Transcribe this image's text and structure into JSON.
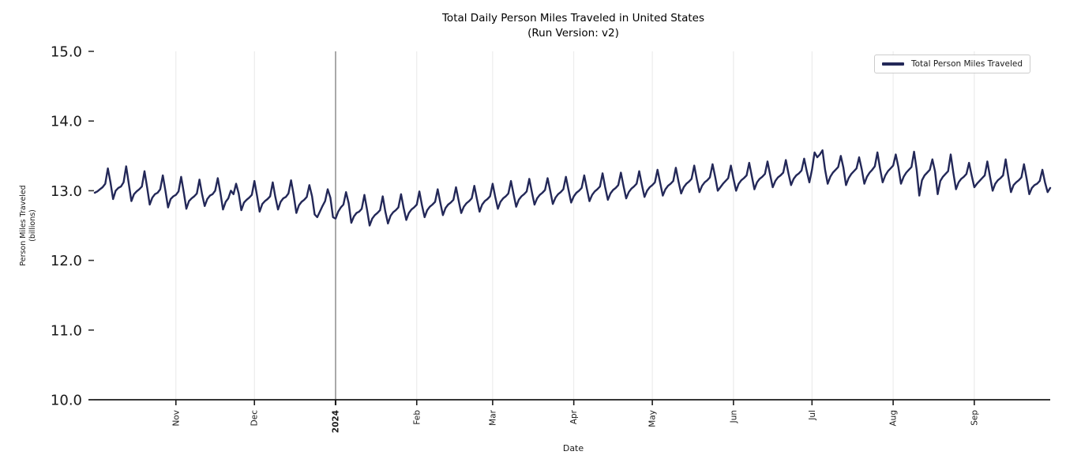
{
  "page": {
    "background": "#ffffff"
  },
  "colors": {
    "line": "#232858",
    "month_gridline": "#e8e8e8",
    "year_divider": "#555555",
    "axis": "#1a1a1a",
    "tick_label": "#1a1a1a",
    "legend_border": "#cccccc"
  },
  "chart_data": {
    "type": "line",
    "title": "Total Daily Person Miles Traveled in United States",
    "subtitle": "(Run Version: v2)",
    "xlabel": "Date",
    "ylabel": "Person Miles Traveled",
    "ylabel_units": "(billions)",
    "grid": "vertical month gridlines only, horizontal grid off",
    "legend": {
      "position": "upper right",
      "entries": [
        {
          "label": "Total Person Miles Traveled",
          "color": "#232858"
        }
      ]
    },
    "ylim": [
      10.0,
      15.0
    ],
    "y_ticks": [
      {
        "value": 10.0,
        "label": "10.0"
      },
      {
        "value": 11.0,
        "label": "11.0"
      },
      {
        "value": 12.0,
        "label": "12.0"
      },
      {
        "value": 13.0,
        "label": "13.0"
      },
      {
        "value": 14.0,
        "label": "14.0"
      },
      {
        "value": 15.0,
        "label": "15.0"
      }
    ],
    "x_ticks": [
      {
        "label": "Nov",
        "day": 31,
        "bold": false
      },
      {
        "label": "Dec",
        "day": 61,
        "bold": false
      },
      {
        "label": "2024",
        "day": 92,
        "bold": true
      },
      {
        "label": "Feb",
        "day": 123,
        "bold": false
      },
      {
        "label": "Mar",
        "day": 152,
        "bold": false
      },
      {
        "label": "Apr",
        "day": 183,
        "bold": false
      },
      {
        "label": "May",
        "day": 213,
        "bold": false
      },
      {
        "label": "Jun",
        "day": 244,
        "bold": false
      },
      {
        "label": "Jul",
        "day": 274,
        "bold": false
      },
      {
        "label": "Aug",
        "day": 305,
        "bold": false
      },
      {
        "label": "Sep",
        "day": 336,
        "bold": false
      }
    ],
    "year_divider": {
      "day": 92,
      "color": "#555555"
    },
    "series": [
      {
        "name": "Total Person Miles Traveled",
        "color": "#232858",
        "n_points": 366,
        "range_note": "daily values Oct 2023 through Sep 2024, weekly oscillation, min ~12.5 mid-Jan, max ~13.6 early Jul",
        "values": [
          12.97,
          12.99,
          13.02,
          13.05,
          13.1,
          13.32,
          13.12,
          12.88,
          13.0,
          13.04,
          13.06,
          13.12,
          13.35,
          13.1,
          12.85,
          12.95,
          12.99,
          13.02,
          13.06,
          13.28,
          13.05,
          12.8,
          12.9,
          12.95,
          12.97,
          13.02,
          13.22,
          13.0,
          12.76,
          12.88,
          12.92,
          12.94,
          12.99,
          13.2,
          12.98,
          12.74,
          12.85,
          12.89,
          12.92,
          12.96,
          13.16,
          12.95,
          12.78,
          12.88,
          12.93,
          12.95,
          13.0,
          13.18,
          12.97,
          12.73,
          12.84,
          12.89,
          13.0,
          12.95,
          13.1,
          12.96,
          12.72,
          12.83,
          12.87,
          12.9,
          12.94,
          13.14,
          12.93,
          12.7,
          12.81,
          12.85,
          12.88,
          12.92,
          13.12,
          12.91,
          12.73,
          12.84,
          12.89,
          12.91,
          12.96,
          13.15,
          12.94,
          12.68,
          12.79,
          12.84,
          12.87,
          12.91,
          13.08,
          12.92,
          12.66,
          12.62,
          12.7,
          12.78,
          12.85,
          13.02,
          12.9,
          12.62,
          12.6,
          12.7,
          12.76,
          12.8,
          12.98,
          12.82,
          12.54,
          12.63,
          12.68,
          12.7,
          12.74,
          12.94,
          12.73,
          12.5,
          12.6,
          12.65,
          12.68,
          12.72,
          12.92,
          12.7,
          12.53,
          12.64,
          12.69,
          12.72,
          12.76,
          12.95,
          12.75,
          12.58,
          12.68,
          12.73,
          12.76,
          12.8,
          12.99,
          12.79,
          12.62,
          12.72,
          12.77,
          12.8,
          12.84,
          13.02,
          12.83,
          12.65,
          12.75,
          12.8,
          12.83,
          12.87,
          13.05,
          12.86,
          12.68,
          12.77,
          12.82,
          12.85,
          12.89,
          13.07,
          12.88,
          12.7,
          12.8,
          12.85,
          12.88,
          12.92,
          13.1,
          12.91,
          12.74,
          12.84,
          12.89,
          12.92,
          12.96,
          13.14,
          12.95,
          12.77,
          12.87,
          12.92,
          12.95,
          12.99,
          13.17,
          12.98,
          12.8,
          12.89,
          12.94,
          12.97,
          13.01,
          13.18,
          13.0,
          12.81,
          12.9,
          12.95,
          12.98,
          13.02,
          13.2,
          13.01,
          12.83,
          12.92,
          12.97,
          13.0,
          13.04,
          13.22,
          13.03,
          12.85,
          12.94,
          12.99,
          13.02,
          13.06,
          13.25,
          13.05,
          12.87,
          12.96,
          13.01,
          13.04,
          13.08,
          13.26,
          13.07,
          12.89,
          12.98,
          13.03,
          13.06,
          13.1,
          13.28,
          13.09,
          12.91,
          13.0,
          13.05,
          13.08,
          13.12,
          13.3,
          13.11,
          12.93,
          13.02,
          13.07,
          13.1,
          13.14,
          13.33,
          13.13,
          12.96,
          13.05,
          13.1,
          13.13,
          13.17,
          13.36,
          13.16,
          12.98,
          13.07,
          13.12,
          13.15,
          13.19,
          13.38,
          13.2,
          13.0,
          13.05,
          13.1,
          13.14,
          13.18,
          13.36,
          13.17,
          13.0,
          13.1,
          13.15,
          13.18,
          13.22,
          13.4,
          13.21,
          13.02,
          13.12,
          13.17,
          13.2,
          13.24,
          13.42,
          13.23,
          13.05,
          13.14,
          13.19,
          13.22,
          13.26,
          13.44,
          13.25,
          13.08,
          13.17,
          13.22,
          13.25,
          13.29,
          13.46,
          13.28,
          13.12,
          13.3,
          13.55,
          13.48,
          13.52,
          13.58,
          13.3,
          13.1,
          13.2,
          13.26,
          13.3,
          13.34,
          13.5,
          13.33,
          13.08,
          13.18,
          13.24,
          13.28,
          13.32,
          13.48,
          13.31,
          13.1,
          13.2,
          13.26,
          13.3,
          13.35,
          13.55,
          13.32,
          13.12,
          13.22,
          13.28,
          13.32,
          13.36,
          13.52,
          13.34,
          13.1,
          13.2,
          13.26,
          13.3,
          13.34,
          13.56,
          13.3,
          12.93,
          13.15,
          13.22,
          13.26,
          13.3,
          13.45,
          13.28,
          12.95,
          13.14,
          13.2,
          13.24,
          13.28,
          13.52,
          13.26,
          13.02,
          13.12,
          13.17,
          13.2,
          13.24,
          13.4,
          13.22,
          13.05,
          13.1,
          13.14,
          13.18,
          13.22,
          13.42,
          13.2,
          13.0,
          13.1,
          13.15,
          13.18,
          13.22,
          13.45,
          13.2,
          12.98,
          13.08,
          13.12,
          13.15,
          13.19,
          13.38,
          13.17,
          12.95,
          13.04,
          13.08,
          13.1,
          13.14,
          13.3,
          13.12,
          12.98,
          13.04
        ]
      }
    ]
  }
}
